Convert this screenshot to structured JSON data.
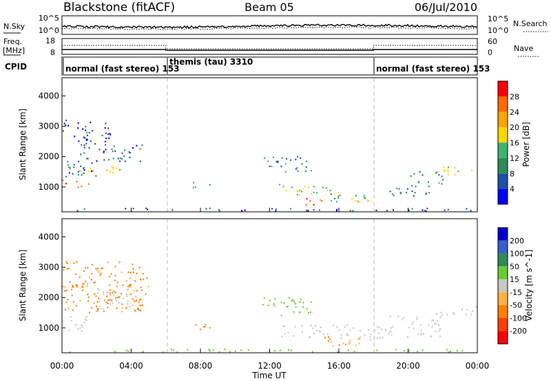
{
  "header": {
    "station": "Blackstone (fitACF)",
    "beam": "Beam 05",
    "date": "06/Jul/2010"
  },
  "noise_panel": {
    "left_label": "N.Sky",
    "right_label": "N.Search",
    "left_ticks": [
      "10^5",
      "10^0"
    ],
    "right_ticks": [
      "10^5",
      "10^0"
    ]
  },
  "freq_panel": {
    "left_label_1": "Freq.",
    "left_label_2": "[MHz]",
    "right_label": "Nave",
    "left_ticks": [
      "18",
      "8"
    ],
    "right_ticks": [
      "60",
      "0"
    ]
  },
  "cpid_panel": {
    "label": "CPID",
    "modes": [
      {
        "text": "normal (fast stereo) 153",
        "start_hour": 0
      },
      {
        "text": "themis (tau) 3310",
        "start_hour": 6
      },
      {
        "text": "normal (fast stereo) 153",
        "start_hour": 18
      }
    ]
  },
  "colors": {
    "power_scale": [
      "#0000ff",
      "#1f4ea8",
      "#2e8b57",
      "#3cb371",
      "#ffd700",
      "#ffa500",
      "#ff6a00",
      "#ff0000"
    ],
    "velocity_scale": [
      "#ff0000",
      "#ff3c00",
      "#ff7f00",
      "#ffb347",
      "#c8c8c0",
      "#6acd32",
      "#2e8b57",
      "#3a5fcd",
      "#0000cd"
    ],
    "ground_scatter": "#c8c8c0"
  },
  "chart_data": [
    {
      "type": "heatmap",
      "title": "",
      "xlabel": "",
      "ylabel": "Slant Range [km]",
      "xlim": [
        0,
        24
      ],
      "ylim": [
        180,
        4600
      ],
      "yticks": [
        1000,
        2000,
        3000,
        4000
      ],
      "colorbar": {
        "label": "Power [dB]",
        "range": [
          0,
          32
        ],
        "tick_values": [
          4,
          8,
          12,
          16,
          20,
          24,
          28
        ],
        "tick_labels": [
          "4",
          "8",
          "12",
          "16",
          "20",
          "24",
          "28"
        ]
      },
      "regions": [
        {
          "t": [
            0.0,
            0.9
          ],
          "r": [
            1050,
            1250
          ],
          "value": 30
        },
        {
          "t": [
            0.9,
            1.8
          ],
          "r": [
            950,
            1150
          ],
          "value": 28
        },
        {
          "t": [
            0.0,
            2.0
          ],
          "r": [
            1300,
            2000
          ],
          "value": 6
        },
        {
          "t": [
            1.0,
            3.0
          ],
          "r": [
            1450,
            1650
          ],
          "value": 22
        },
        {
          "t": [
            2.0,
            4.0
          ],
          "r": [
            1550,
            1700
          ],
          "value": 18
        },
        {
          "t": [
            1.0,
            4.6
          ],
          "r": [
            1800,
            2400
          ],
          "value": 6
        },
        {
          "t": [
            0.0,
            2.8
          ],
          "r": [
            2400,
            3200
          ],
          "value": 5
        },
        {
          "t": [
            7.4,
            8.6
          ],
          "r": [
            950,
            1150
          ],
          "value": 12
        },
        {
          "t": [
            11.5,
            14.5
          ],
          "r": [
            1500,
            2000
          ],
          "value": 10
        },
        {
          "t": [
            12.5,
            16.0
          ],
          "r": [
            700,
            1100
          ],
          "value": 16
        },
        {
          "t": [
            14.0,
            15.5
          ],
          "r": [
            400,
            650
          ],
          "value": 26
        },
        {
          "t": [
            15.5,
            18.0
          ],
          "r": [
            500,
            800
          ],
          "value": 14
        },
        {
          "t": [
            17.0,
            18.0
          ],
          "r": [
            450,
            620
          ],
          "value": 24
        },
        {
          "t": [
            18.5,
            21.5
          ],
          "r": [
            700,
            1000
          ],
          "value": 8
        },
        {
          "t": [
            20.0,
            22.0
          ],
          "r": [
            1000,
            1500
          ],
          "value": 9
        },
        {
          "t": [
            21.8,
            24.0
          ],
          "r": [
            1400,
            1700
          ],
          "value": 18
        },
        {
          "t": [
            0.0,
            24.0
          ],
          "r": [
            200,
            300
          ],
          "value": 6
        }
      ]
    },
    {
      "type": "heatmap",
      "title": "",
      "xlabel": "Time UT",
      "ylabel": "Slant Range [km]",
      "xlim": [
        0,
        24
      ],
      "ylim": [
        180,
        4600
      ],
      "yticks": [
        1000,
        2000,
        3000,
        4000
      ],
      "xtick_labels": [
        "00:00",
        "04:00",
        "08:00",
        "12:00",
        "16:00",
        "20:00",
        "00:00"
      ],
      "colorbar": {
        "label": "Velocity [m s^-1]",
        "range": [
          -250,
          250
        ],
        "tick_labels": [
          "200",
          "100",
          "50",
          "15",
          "-15",
          "-50",
          "-100",
          "-200"
        ]
      },
      "regions": [
        {
          "t": [
            0.0,
            1.8
          ],
          "r": [
            900,
            1400
          ],
          "value": 0
        },
        {
          "t": [
            1.5,
            4.5
          ],
          "r": [
            1500,
            2300
          ],
          "value": 0
        },
        {
          "t": [
            0.0,
            5.0
          ],
          "r": [
            1500,
            3200
          ],
          "value": -60
        },
        {
          "t": [
            7.6,
            8.6
          ],
          "r": [
            950,
            1150
          ],
          "value": -80
        },
        {
          "t": [
            7.6,
            8.6
          ],
          "r": [
            950,
            1150
          ],
          "value": 40
        },
        {
          "t": [
            11.5,
            14.5
          ],
          "r": [
            1400,
            2000
          ],
          "value": 30
        },
        {
          "t": [
            12.5,
            18.5
          ],
          "r": [
            600,
            1100
          ],
          "value": 0
        },
        {
          "t": [
            15.0,
            18.0
          ],
          "r": [
            400,
            700
          ],
          "value": -40
        },
        {
          "t": [
            18.5,
            22.0
          ],
          "r": [
            700,
            1400
          ],
          "value": 0
        },
        {
          "t": [
            21.5,
            24.0
          ],
          "r": [
            1400,
            1700
          ],
          "value": 0
        },
        {
          "t": [
            0.0,
            24.0
          ],
          "r": [
            200,
            300
          ],
          "value": 30
        }
      ]
    }
  ]
}
